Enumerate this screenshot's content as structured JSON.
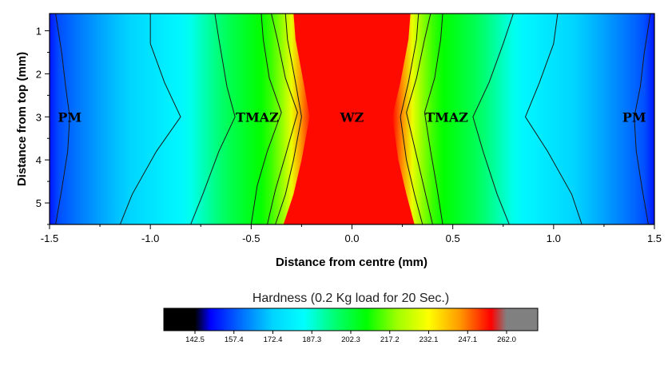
{
  "chart_data": {
    "type": "heatmap",
    "xlabel": "Distance from centre (mm)",
    "ylabel": "Distance from top (mm)",
    "xlim": [
      -1.5,
      1.5
    ],
    "ylim": [
      0.6,
      5.5
    ],
    "y_inverted": true,
    "x_ticks": [
      "-1.5",
      "-1.0",
      "-0.5",
      "0.0",
      "0.5",
      "1.0",
      "1.5"
    ],
    "x_tick_values": [
      -1.5,
      -1.0,
      -0.5,
      0.0,
      0.5,
      1.0,
      1.5
    ],
    "y_ticks": [
      "1",
      "2",
      "3",
      "4",
      "5"
    ],
    "y_tick_values": [
      1,
      2,
      3,
      4,
      5
    ],
    "grid": false,
    "region_labels": [
      {
        "text": "PM",
        "x": -1.4,
        "y": 3.0
      },
      {
        "text": "TMAZ",
        "x": -0.47,
        "y": 3.0
      },
      {
        "text": "WZ",
        "x": 0.0,
        "y": 3.0
      },
      {
        "text": "TMAZ",
        "x": 0.47,
        "y": 3.0
      },
      {
        "text": "PM",
        "x": 1.4,
        "y": 3.0
      }
    ],
    "colorbar": {
      "title": "Hardness (0.2 Kg load for 20 Sec.)",
      "ticks": [
        "142.5",
        "157.4",
        "172.4",
        "187.3",
        "202.3",
        "217.2",
        "232.1",
        "247.1",
        "262.0"
      ],
      "min": 142.5,
      "max": 262.0,
      "colors": [
        "#000000",
        "#0000ff",
        "#0070ff",
        "#00d4ff",
        "#00ffff",
        "#00ff70",
        "#00ff00",
        "#a0ff00",
        "#ffff00",
        "#ff9900",
        "#ff0000",
        "#808080"
      ]
    },
    "contours": [
      {
        "level": 160,
        "side": -1,
        "x": [
          -1.47,
          -1.44,
          -1.42,
          -1.4,
          -1.41,
          -1.44,
          -1.47
        ],
        "y": [
          0.6,
          1.5,
          2.3,
          3.0,
          3.8,
          4.7,
          5.5
        ]
      },
      {
        "level": 175,
        "side": -1,
        "x": [
          -1.0,
          -1.0,
          -0.93,
          -0.85,
          -0.97,
          -1.09,
          -1.15
        ],
        "y": [
          0.6,
          1.3,
          2.2,
          3.0,
          3.8,
          4.8,
          5.5
        ]
      },
      {
        "level": 195,
        "side": -1,
        "x": [
          -0.68,
          -0.66,
          -0.62,
          -0.58,
          -0.66,
          -0.74,
          -0.8
        ],
        "y": [
          0.6,
          1.2,
          2.3,
          3.0,
          3.8,
          4.8,
          5.5
        ]
      },
      {
        "level": 210,
        "side": -1,
        "x": [
          -0.45,
          -0.44,
          -0.41,
          -0.35,
          -0.42,
          -0.47,
          -0.5
        ],
        "y": [
          0.6,
          1.2,
          2.1,
          2.9,
          3.8,
          4.6,
          5.5
        ]
      },
      {
        "level": 225,
        "side": -1,
        "x": [
          -0.4,
          -0.37,
          -0.33,
          -0.27,
          -0.33,
          -0.38,
          -0.42
        ],
        "y": [
          0.6,
          1.2,
          2.1,
          2.9,
          3.9,
          4.7,
          5.5
        ]
      },
      {
        "level": 235,
        "side": -1,
        "x": [
          -0.33,
          -0.32,
          -0.28,
          -0.25,
          -0.29,
          -0.33,
          -0.38
        ],
        "y": [
          0.6,
          1.2,
          2.2,
          3.0,
          4.0,
          4.8,
          5.5
        ]
      },
      {
        "level": 160,
        "side": 1,
        "x": [
          1.48,
          1.45,
          1.43,
          1.4,
          1.41,
          1.44,
          1.47
        ],
        "y": [
          0.6,
          1.5,
          2.3,
          3.0,
          3.8,
          4.7,
          5.5
        ]
      },
      {
        "level": 175,
        "side": 1,
        "x": [
          1.02,
          1.0,
          0.93,
          0.86,
          0.97,
          1.09,
          1.14
        ],
        "y": [
          0.6,
          1.3,
          2.2,
          3.0,
          3.8,
          4.8,
          5.5
        ]
      },
      {
        "level": 195,
        "side": 1,
        "x": [
          0.8,
          0.75,
          0.68,
          0.6,
          0.65,
          0.72,
          0.78
        ],
        "y": [
          0.6,
          1.3,
          2.2,
          3.0,
          3.8,
          4.8,
          5.5
        ]
      },
      {
        "level": 210,
        "side": 1,
        "x": [
          0.45,
          0.44,
          0.41,
          0.36,
          0.39,
          0.42,
          0.45
        ],
        "y": [
          0.6,
          1.2,
          2.1,
          2.9,
          3.8,
          4.6,
          5.5
        ]
      },
      {
        "level": 225,
        "side": 1,
        "x": [
          0.39,
          0.36,
          0.32,
          0.27,
          0.32,
          0.36,
          0.4
        ],
        "y": [
          0.6,
          1.2,
          2.1,
          2.9,
          3.9,
          4.7,
          5.5
        ]
      },
      {
        "level": 235,
        "side": 1,
        "x": [
          0.33,
          0.32,
          0.28,
          0.24,
          0.27,
          0.31,
          0.35
        ],
        "y": [
          0.6,
          1.2,
          2.2,
          3.0,
          4.0,
          4.8,
          5.5
        ]
      }
    ]
  }
}
